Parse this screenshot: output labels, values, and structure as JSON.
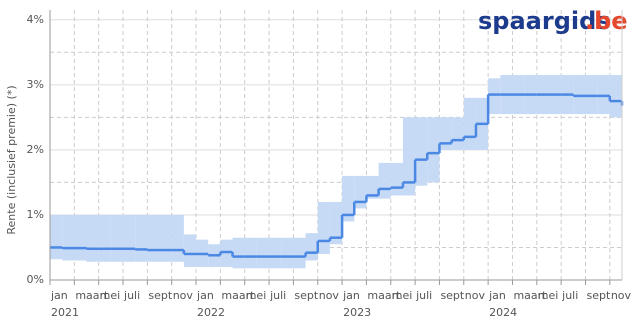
{
  "chart_data": {
    "type": "step-band",
    "y_label": "Rente (inclusief premie) (*)",
    "brand": "spaargids",
    "brand_suffix": ".be",
    "x": [
      "2021-01",
      "2021-02",
      "2021-03",
      "2021-04",
      "2021-05",
      "2021-06",
      "2021-07",
      "2021-08",
      "2021-09",
      "2021-10",
      "2021-11",
      "2021-12",
      "2022-01",
      "2022-02",
      "2022-03",
      "2022-04",
      "2022-05",
      "2022-06",
      "2022-07",
      "2022-08",
      "2022-09",
      "2022-10",
      "2022-11",
      "2022-12",
      "2023-01",
      "2023-02",
      "2023-03",
      "2023-04",
      "2023-05",
      "2023-06",
      "2023-07",
      "2023-08",
      "2023-09",
      "2023-10",
      "2023-11",
      "2023-12",
      "2024-01",
      "2024-02",
      "2024-03",
      "2024-04",
      "2024-05",
      "2024-06",
      "2024-07",
      "2024-08",
      "2024-09",
      "2024-10",
      "2024-11",
      "2024-12"
    ],
    "values": [
      0.5,
      0.49,
      0.49,
      0.48,
      0.48,
      0.48,
      0.48,
      0.47,
      0.46,
      0.46,
      0.46,
      0.4,
      0.4,
      0.38,
      0.43,
      0.36,
      0.36,
      0.36,
      0.36,
      0.36,
      0.36,
      0.42,
      0.6,
      0.65,
      1.0,
      1.2,
      1.3,
      1.4,
      1.42,
      1.5,
      1.85,
      1.95,
      2.1,
      2.15,
      2.2,
      2.4,
      2.85,
      2.85,
      2.85,
      2.85,
      2.85,
      2.85,
      2.85,
      2.83,
      2.83,
      2.83,
      2.75,
      2.68
    ],
    "low": [
      0.32,
      0.3,
      0.3,
      0.28,
      0.28,
      0.28,
      0.28,
      0.28,
      0.28,
      0.28,
      0.28,
      0.2,
      0.2,
      0.2,
      0.2,
      0.18,
      0.18,
      0.18,
      0.18,
      0.18,
      0.18,
      0.3,
      0.4,
      0.55,
      0.9,
      1.1,
      1.25,
      1.25,
      1.3,
      1.3,
      1.45,
      1.5,
      2.0,
      2.0,
      2.0,
      2.0,
      2.55,
      2.55,
      2.55,
      2.55,
      2.55,
      2.55,
      2.55,
      2.55,
      2.55,
      2.55,
      2.5,
      2.45
    ],
    "high": [
      1.0,
      1.0,
      1.0,
      1.0,
      1.0,
      1.0,
      1.0,
      1.0,
      1.0,
      1.0,
      1.0,
      0.7,
      0.62,
      0.55,
      0.62,
      0.65,
      0.65,
      0.65,
      0.65,
      0.65,
      0.65,
      0.72,
      1.2,
      1.2,
      1.6,
      1.6,
      1.6,
      1.8,
      1.8,
      2.5,
      2.5,
      2.5,
      2.5,
      2.5,
      2.8,
      2.8,
      3.1,
      3.15,
      3.15,
      3.15,
      3.15,
      3.15,
      3.15,
      3.15,
      3.15,
      3.15,
      3.15,
      3.15
    ],
    "line_color": "#4a88e4",
    "band_color": "#c6daf6",
    "xlim": [
      "2021-01",
      "2024-12"
    ],
    "xticks": [
      {
        "value": "2021-01",
        "label": "jan"
      },
      {
        "value": "2021-03",
        "label": "maart"
      },
      {
        "value": "2021-05",
        "label": "mei"
      },
      {
        "value": "2021-07",
        "label": "juli"
      },
      {
        "value": "2021-09",
        "label": "sept"
      },
      {
        "value": "2021-11",
        "label": "nov"
      },
      {
        "value": "2022-01",
        "label": "jan"
      },
      {
        "value": "2022-03",
        "label": "maart"
      },
      {
        "value": "2022-05",
        "label": "mei"
      },
      {
        "value": "2022-07",
        "label": "juli"
      },
      {
        "value": "2022-09",
        "label": "sept"
      },
      {
        "value": "2022-11",
        "label": "nov"
      },
      {
        "value": "2023-01",
        "label": "jan"
      },
      {
        "value": "2023-03",
        "label": "maart"
      },
      {
        "value": "2023-05",
        "label": "mei"
      },
      {
        "value": "2023-07",
        "label": "juli"
      },
      {
        "value": "2023-09",
        "label": "sept"
      },
      {
        "value": "2023-11",
        "label": "nov"
      },
      {
        "value": "2024-01",
        "label": "jan"
      },
      {
        "value": "2024-03",
        "label": "maart"
      },
      {
        "value": "2024-05",
        "label": "mei"
      },
      {
        "value": "2024-07",
        "label": "juli"
      },
      {
        "value": "2024-09",
        "label": "sept"
      },
      {
        "value": "2024-11",
        "label": "nov"
      }
    ],
    "year_ticks": [
      {
        "value": "2021-01",
        "label": "2021"
      },
      {
        "value": "2022-01",
        "label": "2022"
      },
      {
        "value": "2023-01",
        "label": "2023"
      },
      {
        "value": "2024-01",
        "label": "2024"
      }
    ],
    "ylim": [
      0,
      4.15
    ],
    "yticks": [
      {
        "value": 0,
        "label": "0%"
      },
      {
        "value": 1,
        "label": "1%"
      },
      {
        "value": 2,
        "label": "2%"
      },
      {
        "value": 3,
        "label": "3%"
      },
      {
        "value": 4,
        "label": "4%"
      }
    ],
    "yticks_minor": [
      0.5,
      1.5,
      2.5,
      3.5
    ],
    "grid": true
  }
}
